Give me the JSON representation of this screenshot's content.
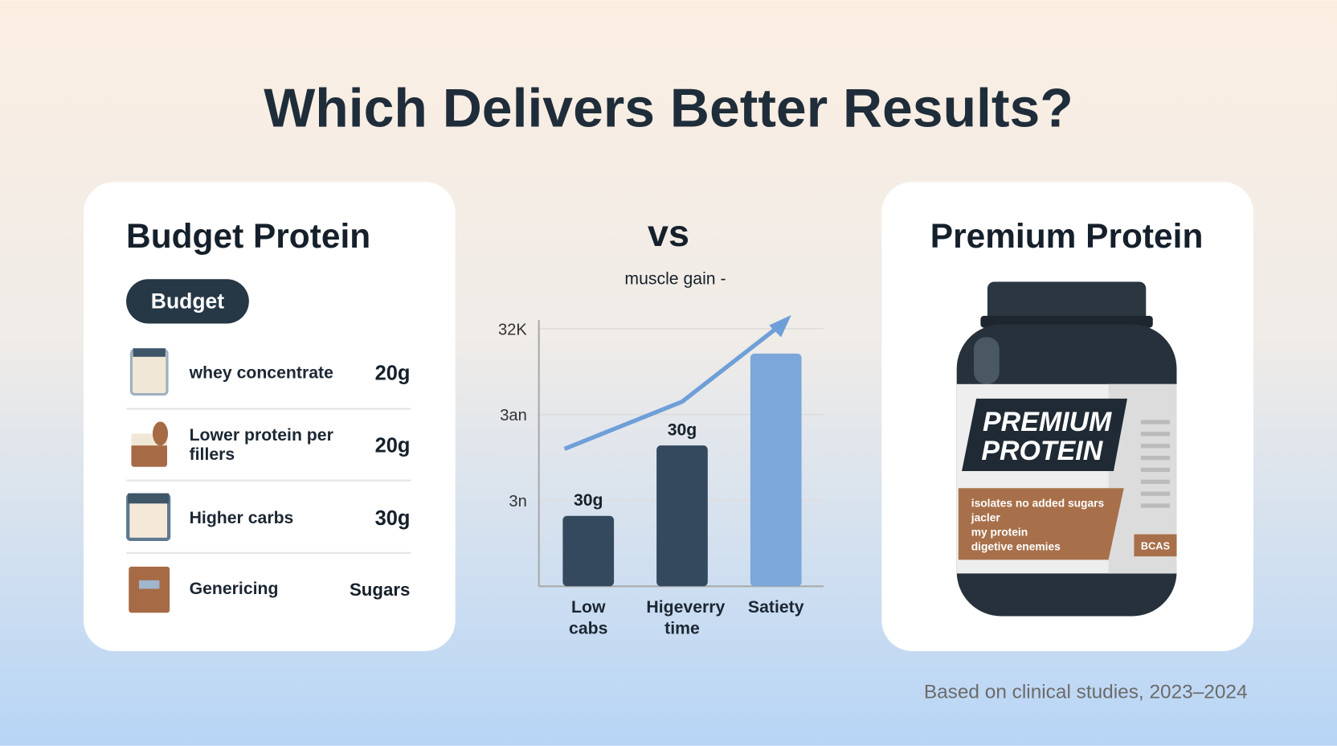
{
  "title": "Which Delivers Better Results?",
  "budget_card": {
    "title": "Budget Protein",
    "badge": "Budget",
    "rows": [
      {
        "label": "whey concentrate",
        "value": "20g"
      },
      {
        "label": "Lower protein per fillers",
        "value": "20g"
      },
      {
        "label": "Higher carbs",
        "value": "30g"
      },
      {
        "label": "Genericing",
        "value": "Sugars"
      }
    ]
  },
  "premium_card": {
    "title": "Premium Protein",
    "jar_brand": [
      "PREMIUM",
      "PROTEIN"
    ],
    "jar_text": [
      "isolates no added sugars",
      "jacler",
      "my protein",
      "digetive enemies"
    ],
    "jar_tag": "BCAS"
  },
  "footnote": "Based on clinical studies, 2023–2024",
  "chart_data": {
    "type": "bar",
    "title": "vs",
    "subtitle": "muscle gain -",
    "categories": [
      "Low cabs",
      "Higeverry time",
      "Satiety"
    ],
    "values": [
      0.82,
      1.64,
      2.71
    ],
    "colors": [
      "#34495e",
      "#34495e",
      "#7ba7da"
    ],
    "annotations": [
      "30g",
      "30g"
    ],
    "line": {
      "values": [
        1.6,
        2.15,
        3.0
      ],
      "color": "#6f9fd8"
    },
    "ylim": [
      0,
      3.1
    ],
    "yticks": [
      {
        "value": 1,
        "label": "3n"
      },
      {
        "value": 2,
        "label": "3an"
      },
      {
        "value": 3,
        "label": "32K"
      }
    ],
    "grid": true
  }
}
